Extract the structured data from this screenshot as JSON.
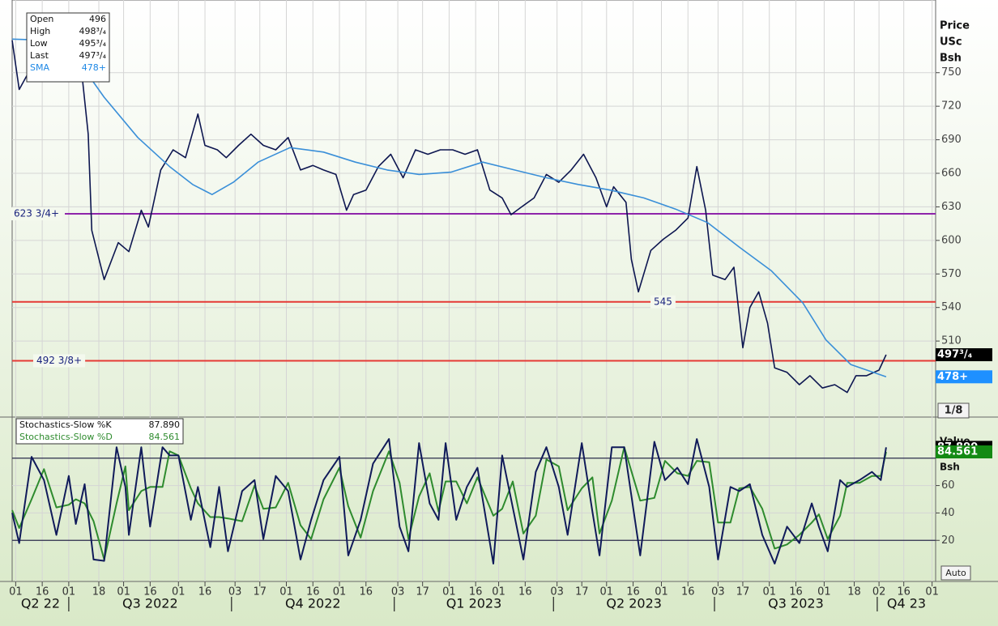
{
  "chart_data": {
    "type": "line",
    "xlim": [
      "2022-05-30",
      "2023-11-03"
    ],
    "xticks": [
      {
        "value": "2022-06-01",
        "label": "01"
      },
      {
        "value": "2022-06-16",
        "label": "16"
      },
      {
        "value": "2022-07-01",
        "label": "01"
      },
      {
        "value": "2022-07-18",
        "label": "18"
      },
      {
        "value": "2022-08-01",
        "label": "01"
      },
      {
        "value": "2022-08-16",
        "label": "16"
      },
      {
        "value": "2022-09-01",
        "label": "01"
      },
      {
        "value": "2022-09-16",
        "label": "16"
      },
      {
        "value": "2022-10-03",
        "label": "03"
      },
      {
        "value": "2022-10-17",
        "label": "17"
      },
      {
        "value": "2022-11-01",
        "label": "01"
      },
      {
        "value": "2022-11-16",
        "label": "16"
      },
      {
        "value": "2022-12-01",
        "label": "01"
      },
      {
        "value": "2022-12-16",
        "label": "16"
      },
      {
        "value": "2023-01-03",
        "label": "03"
      },
      {
        "value": "2023-01-17",
        "label": "17"
      },
      {
        "value": "2023-02-01",
        "label": "01"
      },
      {
        "value": "2023-02-16",
        "label": "16"
      },
      {
        "value": "2023-03-01",
        "label": "01"
      },
      {
        "value": "2023-03-16",
        "label": "16"
      },
      {
        "value": "2023-04-03",
        "label": "03"
      },
      {
        "value": "2023-04-17",
        "label": "17"
      },
      {
        "value": "2023-05-01",
        "label": "01"
      },
      {
        "value": "2023-05-16",
        "label": "16"
      },
      {
        "value": "2023-06-01",
        "label": "01"
      },
      {
        "value": "2023-06-16",
        "label": "16"
      },
      {
        "value": "2023-07-03",
        "label": "03"
      },
      {
        "value": "2023-07-17",
        "label": "17"
      },
      {
        "value": "2023-08-01",
        "label": "01"
      },
      {
        "value": "2023-08-16",
        "label": "16"
      },
      {
        "value": "2023-09-01",
        "label": "01"
      },
      {
        "value": "2023-09-18",
        "label": "18"
      },
      {
        "value": "2023-10-02",
        "label": "02"
      },
      {
        "value": "2023-10-16",
        "label": "16"
      },
      {
        "value": "2023-11-01",
        "label": "01"
      }
    ],
    "periods": [
      {
        "value": "2022-04-01",
        "label": "Q2 22"
      },
      {
        "value": "2022-07-01",
        "label": "Q3 2022"
      },
      {
        "value": "2022-10-01",
        "label": "Q4 2022"
      },
      {
        "value": "2023-01-01",
        "label": "Q1 2023"
      },
      {
        "value": "2023-04-01",
        "label": "Q2 2023"
      },
      {
        "value": "2023-07-01",
        "label": "Q3 2023"
      },
      {
        "value": "2023-10-01",
        "label": "Q4 23"
      }
    ],
    "price": {
      "axis_labels": [
        "Price",
        "USc",
        "Bsh"
      ],
      "ylim": [
        442,
        815
      ],
      "yticks": [
        510,
        540,
        570,
        600,
        630,
        660,
        690,
        720,
        750
      ],
      "grid": true,
      "increment": "1/8",
      "info": [
        {
          "label": "Open",
          "value": "496"
        },
        {
          "label": "High",
          "value": "498³/₄"
        },
        {
          "label": "Low",
          "value": "495³/₄"
        },
        {
          "label": "Last",
          "value": "497³/₄"
        },
        {
          "label": "SMA",
          "value": "478+",
          "color": "#1e88e5"
        }
      ],
      "hlines": [
        {
          "value": 623.75,
          "label": "623 3/4+",
          "color": "#8e24aa"
        },
        {
          "value": 545,
          "label": "545",
          "color": "#e53935"
        },
        {
          "value": 492.375,
          "label": "492 3/8+",
          "color": "#e53935"
        }
      ],
      "series": [
        {
          "color": "#0d1650",
          "tag": "497³/₄",
          "tag_color": "#000000",
          "x": [
            "2022-05-30",
            "2022-06-03",
            "2022-06-10",
            "2022-06-17",
            "2022-06-24",
            "2022-07-01",
            "2022-07-08",
            "2022-07-12",
            "2022-07-14",
            "2022-07-21",
            "2022-07-29",
            "2022-08-04",
            "2022-08-11",
            "2022-08-15",
            "2022-08-22",
            "2022-08-29",
            "2022-09-05",
            "2022-09-12",
            "2022-09-16",
            "2022-09-23",
            "2022-09-28",
            "2022-10-05",
            "2022-10-12",
            "2022-10-19",
            "2022-10-26",
            "2022-11-02",
            "2022-11-09",
            "2022-11-16",
            "2022-11-22",
            "2022-11-29",
            "2022-12-05",
            "2022-12-09",
            "2022-12-16",
            "2022-12-23",
            "2022-12-30",
            "2023-01-06",
            "2023-01-13",
            "2023-01-20",
            "2023-01-27",
            "2023-02-03",
            "2023-02-10",
            "2023-02-17",
            "2023-02-24",
            "2023-03-03",
            "2023-03-08",
            "2023-03-14",
            "2023-03-21",
            "2023-03-28",
            "2023-04-04",
            "2023-04-11",
            "2023-04-18",
            "2023-04-25",
            "2023-05-01",
            "2023-05-05",
            "2023-05-12",
            "2023-05-15",
            "2023-05-19",
            "2023-05-26",
            "2023-06-02",
            "2023-06-09",
            "2023-06-16",
            "2023-06-21",
            "2023-06-26",
            "2023-06-30",
            "2023-07-07",
            "2023-07-12",
            "2023-07-17",
            "2023-07-21",
            "2023-07-26",
            "2023-07-31",
            "2023-08-04",
            "2023-08-11",
            "2023-08-18",
            "2023-08-24",
            "2023-08-31",
            "2023-09-07",
            "2023-09-14",
            "2023-09-19",
            "2023-09-25",
            "2023-10-02",
            "2023-10-06"
          ],
          "values": [
            779,
            735,
            755,
            745,
            760,
            748,
            755,
            695,
            609,
            565,
            598,
            590,
            627,
            612,
            663,
            681,
            674,
            713,
            685,
            681,
            674,
            685,
            695,
            685,
            681,
            692,
            663,
            667,
            663,
            659,
            627,
            641,
            645,
            666,
            677,
            656,
            681,
            677,
            681,
            681,
            677,
            681,
            645,
            638,
            623,
            630,
            638,
            659,
            652,
            663,
            677,
            656,
            630,
            648,
            634,
            583,
            554,
            591,
            601,
            609,
            620,
            666,
            627,
            569,
            565,
            576,
            504,
            540,
            554,
            526,
            486,
            482,
            471,
            479,
            468,
            471,
            464,
            479,
            479,
            484,
            497.75
          ]
        },
        {
          "name": "SMA",
          "color": "#3a8fd8",
          "tag": "478+",
          "tag_color": "#1e90ff",
          "x": [
            "2022-05-30",
            "2022-06-19",
            "2022-07-08",
            "2022-07-21",
            "2022-08-09",
            "2022-08-27",
            "2022-09-09",
            "2022-09-20",
            "2022-10-02",
            "2022-10-16",
            "2022-11-03",
            "2022-11-22",
            "2022-12-10",
            "2022-12-28",
            "2023-01-15",
            "2023-02-02",
            "2023-02-20",
            "2023-03-10",
            "2023-03-28",
            "2023-04-15",
            "2023-05-03",
            "2023-05-22",
            "2023-06-09",
            "2023-06-27",
            "2023-07-15",
            "2023-08-02",
            "2023-08-20",
            "2023-09-02",
            "2023-09-16",
            "2023-10-06"
          ],
          "values": [
            780,
            779,
            757,
            728,
            692,
            666,
            650,
            641,
            652,
            670,
            683,
            679,
            670,
            663,
            659,
            661,
            670,
            663,
            656,
            650,
            645,
            638,
            628,
            616,
            594,
            573,
            544,
            511,
            489,
            478
          ]
        }
      ]
    },
    "stochastics": {
      "axis_labels": [
        "Value",
        "Bsh"
      ],
      "ylim": [
        -10,
        110
      ],
      "yticks": [
        20,
        40,
        60
      ],
      "levels": [
        80,
        20
      ],
      "grid": true,
      "scale_mode": "Auto",
      "x": [
        "2022-05-30",
        "2022-06-03",
        "2022-06-10",
        "2022-06-17",
        "2022-06-24",
        "2022-07-01",
        "2022-07-05",
        "2022-07-10",
        "2022-07-15",
        "2022-07-21",
        "2022-07-28",
        "2022-08-02",
        "2022-08-04",
        "2022-08-11",
        "2022-08-16",
        "2022-08-23",
        "2022-08-27",
        "2022-09-01",
        "2022-09-08",
        "2022-09-12",
        "2022-09-19",
        "2022-09-24",
        "2022-09-29",
        "2022-10-07",
        "2022-10-14",
        "2022-10-19",
        "2022-10-26",
        "2022-11-02",
        "2022-11-09",
        "2022-11-15",
        "2022-11-22",
        "2022-12-01",
        "2022-12-06",
        "2022-12-13",
        "2022-12-20",
        "2022-12-29",
        "2023-01-04",
        "2023-01-09",
        "2023-01-15",
        "2023-01-21",
        "2023-01-26",
        "2023-01-30",
        "2023-02-05",
        "2023-02-11",
        "2023-02-17",
        "2023-02-26",
        "2023-03-03",
        "2023-03-09",
        "2023-03-15",
        "2023-03-22",
        "2023-03-28",
        "2023-04-04",
        "2023-04-09",
        "2023-04-17",
        "2023-04-23",
        "2023-04-27",
        "2023-05-04",
        "2023-05-11",
        "2023-05-20",
        "2023-05-28",
        "2023-06-03",
        "2023-06-10",
        "2023-06-16",
        "2023-06-21",
        "2023-06-28",
        "2023-07-03",
        "2023-07-10",
        "2023-07-15",
        "2023-07-21",
        "2023-07-28",
        "2023-08-04",
        "2023-08-11",
        "2023-08-18",
        "2023-08-25",
        "2023-08-29",
        "2023-09-03",
        "2023-09-10",
        "2023-09-14",
        "2023-09-21",
        "2023-09-28",
        "2023-10-03",
        "2023-10-06"
      ],
      "series": [
        {
          "name": "Stochastics-Slow %K",
          "color": "#101a5a",
          "tag": "87.890",
          "tag_color": "#000000",
          "values": [
            40,
            18,
            81,
            64,
            24,
            67,
            32,
            61,
            6,
            5,
            88,
            59,
            24,
            88,
            30,
            88,
            82,
            82,
            35,
            59,
            15,
            59,
            12,
            56,
            64,
            21,
            67,
            56,
            6,
            35,
            64,
            81,
            9,
            35,
            76,
            94,
            30,
            12,
            91,
            47,
            35,
            91,
            35,
            59,
            73,
            3,
            82,
            44,
            6,
            70,
            88,
            59,
            24,
            91,
            41,
            9,
            88,
            88,
            9,
            92,
            64,
            73,
            61,
            94,
            59,
            6,
            59,
            56,
            61,
            24,
            3,
            30,
            18,
            47,
            30,
            12,
            64,
            59,
            64,
            70,
            64,
            87.89
          ]
        },
        {
          "name": "Stochastics-Slow %D",
          "color": "#2e8b2e",
          "tag": "84.561",
          "tag_color": "#138a13",
          "values": [
            42,
            29,
            50,
            72,
            44,
            46,
            50,
            47,
            34,
            6,
            47,
            74,
            42,
            56,
            59,
            59,
            85,
            82,
            58,
            47,
            37,
            37,
            36,
            34,
            60,
            43,
            44,
            62,
            31,
            21,
            50,
            73,
            45,
            22,
            56,
            85,
            62,
            21,
            52,
            69,
            41,
            63,
            63,
            47,
            66,
            38,
            43,
            63,
            25,
            38,
            79,
            74,
            42,
            58,
            66,
            25,
            49,
            88,
            49,
            51,
            78,
            69,
            67,
            78,
            77,
            33,
            33,
            58,
            59,
            43,
            14,
            17,
            24,
            33,
            39,
            21,
            38,
            62,
            62,
            67,
            67,
            84.561
          ]
        }
      ]
    }
  }
}
